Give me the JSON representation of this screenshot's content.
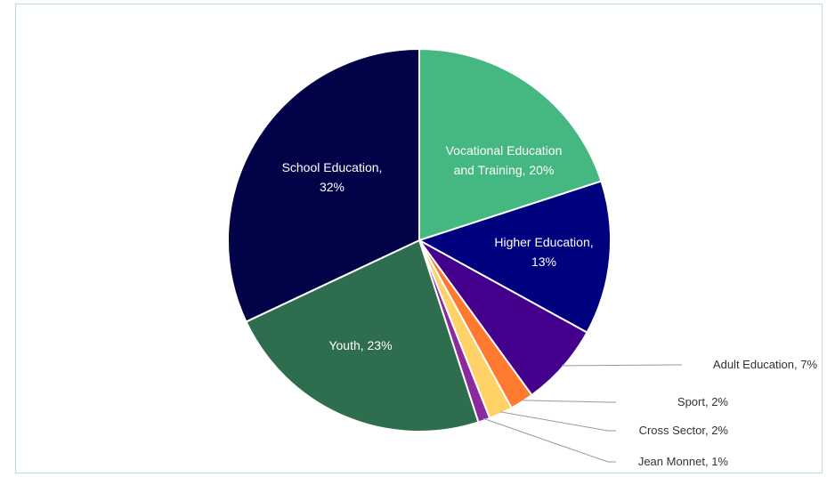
{
  "chart_data": {
    "type": "pie",
    "slices": [
      {
        "label": "Vocational Education and Training, 20%",
        "value": 20,
        "color": "#45b780",
        "placement": "inside"
      },
      {
        "label": "Higher Education, 13%",
        "value": 13,
        "color": "#00017e",
        "placement": "inside"
      },
      {
        "label": "Adult Education, 7%",
        "value": 7,
        "color": "#44008c",
        "placement": "outside"
      },
      {
        "label": "Sport, 2%",
        "value": 2,
        "color": "#ff7a2e",
        "placement": "outside"
      },
      {
        "label": "Cross Sector, 2%",
        "value": 2,
        "color": "#ffd166",
        "placement": "outside"
      },
      {
        "label": "Jean Monnet, 1%",
        "value": 1,
        "color": "#8a2a9c",
        "placement": "outside"
      },
      {
        "label": "Youth, 23%",
        "value": 23,
        "color": "#2e6e4e",
        "placement": "inside"
      },
      {
        "label": "School Education, 32%",
        "value": 32,
        "color": "#020249",
        "placement": "inside"
      }
    ],
    "start": "12 o'clock",
    "direction": "clockwise",
    "legend": "none"
  }
}
